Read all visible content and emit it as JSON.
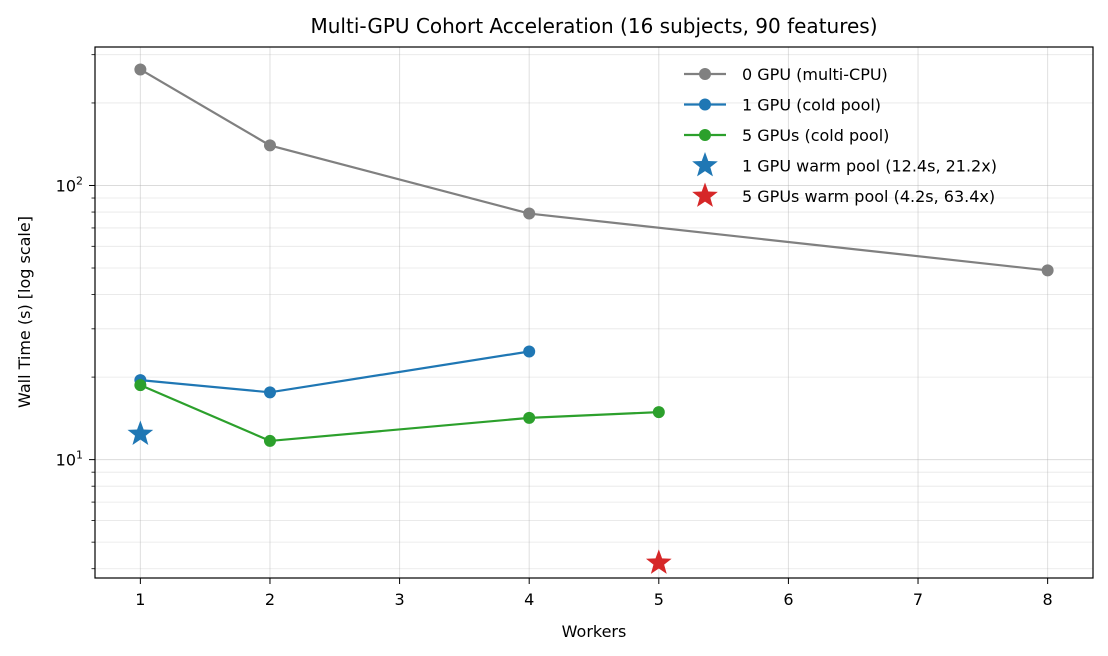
{
  "chart_data": {
    "type": "line",
    "title": "Multi-GPU Cohort Acceleration (16 subjects, 90 features)",
    "xlabel": "Workers",
    "ylabel": "Wall Time (s) [log scale]",
    "yscale": "log",
    "xlim": [
      0.65,
      8.35
    ],
    "ylim": [
      3.7,
      320
    ],
    "xticks": [
      1,
      2,
      3,
      4,
      5,
      6,
      7,
      8
    ],
    "yticks": [
      {
        "value": 10,
        "label": "10",
        "sup": "1"
      },
      {
        "value": 100,
        "label": "10",
        "sup": "2"
      }
    ],
    "grid": true,
    "legend_position": "top-right",
    "series": [
      {
        "name": "0 GPU (multi-CPU)",
        "color": "#808080",
        "marker": "circle",
        "x": [
          1,
          2,
          4,
          8
        ],
        "y": [
          265,
          140,
          79,
          49
        ]
      },
      {
        "name": "1 GPU (cold pool)",
        "color": "#1f77b4",
        "marker": "circle",
        "x": [
          1,
          2,
          4
        ],
        "y": [
          19.5,
          17.6,
          24.8
        ]
      },
      {
        "name": "5 GPUs (cold pool)",
        "color": "#2ca02c",
        "marker": "circle",
        "x": [
          1,
          2,
          4,
          5
        ],
        "y": [
          18.7,
          11.7,
          14.2,
          14.9
        ]
      },
      {
        "name": "1 GPU warm pool (12.4s, 21.2x)",
        "color": "#1f77b4",
        "marker": "star",
        "x": [
          1
        ],
        "y": [
          12.4
        ]
      },
      {
        "name": "5 GPUs warm pool (4.2s, 63.4x)",
        "color": "#d62728",
        "marker": "star",
        "x": [
          5
        ],
        "y": [
          4.2
        ]
      }
    ]
  }
}
